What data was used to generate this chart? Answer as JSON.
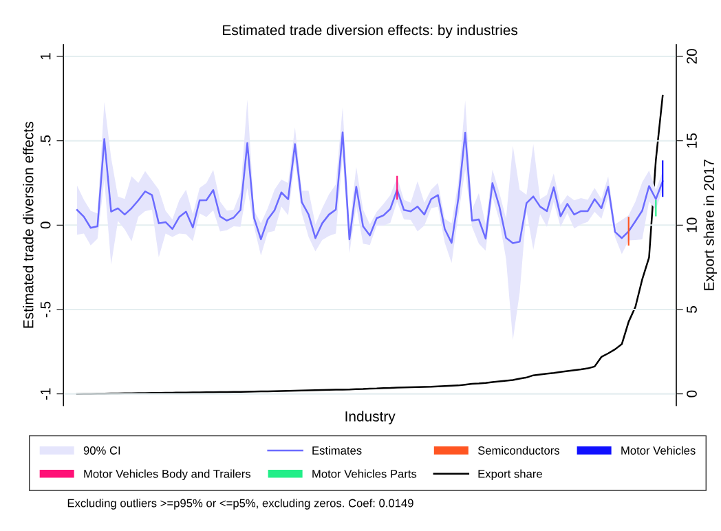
{
  "chart_data": {
    "type": "line",
    "title": "Estimated trade diversion effects: by industries",
    "xlabel": "Industry",
    "ylabel": "Estimated trade diversion effects",
    "y2label": "Export share in 2017",
    "categories": [
      null,
      null,
      null,
      null,
      null,
      null,
      null,
      null,
      null,
      null,
      null,
      null,
      null,
      null,
      null,
      null,
      null,
      null,
      null,
      null,
      null,
      null,
      null,
      null,
      null,
      null,
      null,
      null,
      null,
      null,
      null,
      null,
      null,
      null,
      null,
      null,
      null,
      null,
      null,
      null,
      null,
      null,
      null,
      null,
      null,
      null,
      null,
      null,
      null,
      null,
      null,
      null,
      null,
      null,
      null,
      null,
      null,
      null,
      null,
      null,
      null,
      null,
      null,
      null,
      null,
      null,
      null,
      null,
      null,
      null,
      null,
      null,
      null,
      null,
      null,
      null,
      null,
      null,
      null,
      null,
      null,
      null,
      null,
      null,
      null,
      null,
      null
    ],
    "ylim": [
      -1.07,
      1.07
    ],
    "yticks": [
      1,
      {
        "value": 0.5,
        "label": ".5"
      },
      0,
      {
        "value": -0.5,
        "label": "-.5"
      },
      {
        "value": -1,
        "label": "-1"
      }
    ],
    "y2lim": [
      -0.7,
      20.7
    ],
    "y2ticks": [
      0,
      5,
      10,
      15,
      20
    ],
    "grid": "y",
    "legend": "bottom",
    "series": [
      {
        "name": "90% CI",
        "type": "area",
        "color": "#e5e5fc",
        "values": [
          null,
          null,
          null,
          null,
          null,
          null,
          null,
          null,
          null,
          null,
          null,
          null,
          null,
          null,
          null,
          null,
          null,
          null,
          null,
          null,
          null,
          null,
          null,
          null,
          null,
          null,
          null,
          null,
          null,
          null,
          null,
          null,
          null,
          null,
          null,
          null,
          null,
          null,
          null,
          null,
          null,
          null,
          null,
          null,
          null,
          null,
          null,
          null,
          null,
          null,
          null,
          null,
          null,
          null,
          null,
          null,
          null,
          null,
          null,
          null,
          null,
          null,
          null,
          null,
          null,
          null,
          null,
          null,
          null,
          null,
          null,
          null,
          null,
          null,
          null,
          null,
          null,
          null,
          null,
          null,
          null,
          null,
          null,
          null,
          null,
          null,
          null
        ],
        "upper": [
          0.235,
          0.15,
          0.085,
          0.07,
          0.73,
          0.4,
          0.17,
          0.155,
          0.29,
          0.25,
          0.32,
          0.265,
          0.21,
          0.085,
          0.034,
          0.147,
          0.21,
          0.065,
          0.22,
          0.25,
          0.327,
          0.14,
          0.086,
          0.092,
          0.195,
          0.745,
          0.086,
          0.01,
          0.1,
          0.21,
          0.27,
          0.25,
          0.58,
          0.204,
          0.204,
          0.004,
          0.1,
          0.183,
          0.242,
          0.7,
          -0.01,
          0.346,
          0.092,
          0.004,
          0.079,
          0.126,
          0.178,
          0.283,
          0.15,
          0.133,
          0.26,
          0.133,
          0.21,
          0.25,
          0.038,
          0.01,
          0.26,
          0.74,
          0.092,
          0.19,
          0.004,
          0.33,
          0.194,
          0.04,
          0.47,
          0.21,
          0.18,
          0.48,
          0.154,
          0.18,
          0.306,
          0.12,
          0.178,
          0.147,
          0.16,
          0.15,
          0.22,
          0.154,
          0.29,
          0.004,
          0.031,
          0.058,
          0.14,
          0.255,
          0.323,
          0.21,
          0.317
        ],
        "lower": [
          -0.057,
          -0.05,
          -0.12,
          -0.08,
          0.27,
          -0.235,
          0.025,
          -0.025,
          -0.095,
          0.05,
          0.083,
          0.092,
          -0.19,
          -0.05,
          -0.07,
          -0.05,
          -0.054,
          -0.094,
          0.07,
          0.048,
          0.088,
          -0.037,
          -0.03,
          -0.007,
          -0.01,
          0.22,
          -0.01,
          -0.18,
          -0.043,
          -0.034,
          0.11,
          0.058,
          0.385,
          0.07,
          -0.07,
          -0.156,
          -0.088,
          -0.064,
          -0.05,
          0.405,
          -0.166,
          0.113,
          -0.11,
          -0.118,
          -0.003,
          -0.003,
          0.014,
          0.14,
          0.034,
          0.031,
          -0.037,
          -0.003,
          0.1,
          0.109,
          -0.105,
          -0.224,
          0.06,
          0.33,
          -0.01,
          -0.11,
          -0.152,
          0.167,
          0.031,
          -0.2,
          -0.68,
          -0.4,
          0.086,
          -0.145,
          0.065,
          -0.01,
          0.14,
          -0.01,
          0.072,
          -0.02,
          0.004,
          0.02,
          0.079,
          0.038,
          0.167,
          -0.07,
          -0.172,
          -0.09,
          -0.088,
          -0.084,
          0.14,
          0.092,
          0.21
        ]
      },
      {
        "name": "Estimates",
        "color": "#6b6bff",
        "values": [
          0.09,
          0.05,
          -0.016,
          -0.007,
          0.51,
          0.08,
          0.1,
          0.063,
          0.1,
          0.147,
          0.2,
          0.178,
          0.011,
          0.018,
          -0.023,
          0.048,
          0.08,
          -0.014,
          0.147,
          0.148,
          0.208,
          0.052,
          0.027,
          0.045,
          0.09,
          0.486,
          0.042,
          -0.084,
          0.034,
          0.088,
          0.194,
          0.154,
          0.48,
          0.136,
          0.063,
          -0.077,
          0.011,
          0.063,
          0.092,
          0.55,
          -0.084,
          0.228,
          -0.007,
          -0.061,
          0.041,
          0.058,
          0.096,
          0.21,
          0.09,
          0.082,
          0.11,
          0.063,
          0.154,
          0.178,
          -0.023,
          -0.105,
          0.16,
          0.548,
          0.027,
          0.034,
          -0.08,
          0.249,
          0.113,
          -0.075,
          -0.107,
          -0.098,
          0.13,
          0.17,
          0.11,
          0.083,
          0.224,
          0.052,
          0.126,
          0.063,
          0.083,
          0.083,
          0.154,
          0.1,
          0.228,
          -0.04,
          -0.077,
          -0.037,
          0.024,
          0.086,
          0.232,
          0.154,
          0.26
        ]
      },
      {
        "name": "Semiconductors",
        "type": "bar",
        "color": "#ff5522",
        "values": [
          null,
          null,
          null,
          null,
          null,
          null,
          null,
          null,
          null,
          null,
          null,
          null,
          null,
          null,
          null,
          null,
          null,
          null,
          null,
          null,
          null,
          null,
          null,
          null,
          null,
          null,
          null,
          null,
          null,
          null,
          null,
          null,
          null,
          null,
          null,
          null,
          null,
          null,
          null,
          null,
          null,
          null,
          null,
          null,
          null,
          null,
          null,
          null,
          null,
          null,
          null,
          null,
          null,
          null,
          null,
          null,
          null,
          null,
          null,
          null,
          null,
          null,
          null,
          null,
          null,
          null,
          null,
          null,
          null,
          null,
          null,
          null,
          null,
          null,
          null,
          null,
          null,
          null,
          null,
          null,
          null,
          0.17,
          null,
          null,
          null,
          null,
          null
        ],
        "base": [
          null,
          null,
          null,
          null,
          null,
          null,
          null,
          null,
          null,
          null,
          null,
          null,
          null,
          null,
          null,
          null,
          null,
          null,
          null,
          null,
          null,
          null,
          null,
          null,
          null,
          null,
          null,
          null,
          null,
          null,
          null,
          null,
          null,
          null,
          null,
          null,
          null,
          null,
          null,
          null,
          null,
          null,
          null,
          null,
          null,
          null,
          null,
          null,
          null,
          null,
          null,
          null,
          null,
          null,
          null,
          null,
          null,
          null,
          null,
          null,
          null,
          null,
          null,
          null,
          null,
          null,
          null,
          null,
          null,
          null,
          null,
          null,
          null,
          null,
          null,
          null,
          null,
          null,
          null,
          null,
          null,
          -0.121,
          null,
          null,
          null,
          null,
          null
        ]
      },
      {
        "name": "Motor Vehicles",
        "type": "bar",
        "color": "#1010ff",
        "values": [
          null,
          null,
          null,
          null,
          null,
          null,
          null,
          null,
          null,
          null,
          null,
          null,
          null,
          null,
          null,
          null,
          null,
          null,
          null,
          null,
          null,
          null,
          null,
          null,
          null,
          null,
          null,
          null,
          null,
          null,
          null,
          null,
          null,
          null,
          null,
          null,
          null,
          null,
          null,
          null,
          null,
          null,
          null,
          null,
          null,
          null,
          null,
          null,
          null,
          null,
          null,
          null,
          null,
          null,
          null,
          null,
          null,
          null,
          null,
          null,
          null,
          null,
          null,
          null,
          null,
          null,
          null,
          null,
          null,
          null,
          null,
          null,
          null,
          null,
          null,
          null,
          null,
          null,
          null,
          null,
          null,
          null,
          null,
          null,
          null,
          null,
          0.216
        ],
        "base": [
          null,
          null,
          null,
          null,
          null,
          null,
          null,
          null,
          null,
          null,
          null,
          null,
          null,
          null,
          null,
          null,
          null,
          null,
          null,
          null,
          null,
          null,
          null,
          null,
          null,
          null,
          null,
          null,
          null,
          null,
          null,
          null,
          null,
          null,
          null,
          null,
          null,
          null,
          null,
          null,
          null,
          null,
          null,
          null,
          null,
          null,
          null,
          null,
          null,
          null,
          null,
          null,
          null,
          null,
          null,
          null,
          null,
          null,
          null,
          null,
          null,
          null,
          null,
          null,
          null,
          null,
          null,
          null,
          null,
          null,
          null,
          null,
          null,
          null,
          null,
          null,
          null,
          null,
          null,
          null,
          null,
          null,
          null,
          null,
          null,
          null,
          0.167
        ]
      },
      {
        "name": "Motor Vehicles Body and Trailers",
        "type": "bar",
        "color": "#ff1177",
        "values": [
          null,
          null,
          null,
          null,
          null,
          null,
          null,
          null,
          null,
          null,
          null,
          null,
          null,
          null,
          null,
          null,
          null,
          null,
          null,
          null,
          null,
          null,
          null,
          null,
          null,
          null,
          null,
          null,
          null,
          null,
          null,
          null,
          null,
          null,
          null,
          null,
          null,
          null,
          null,
          null,
          null,
          null,
          null,
          null,
          null,
          null,
          null,
          0.141,
          null,
          null,
          null,
          null,
          null,
          null,
          null,
          null,
          null,
          null,
          null,
          null,
          null,
          null,
          null,
          null,
          null,
          null,
          null,
          null,
          null,
          null,
          null,
          null,
          null,
          null,
          null,
          null,
          null,
          null,
          null,
          null,
          null,
          null,
          null,
          null,
          null,
          null,
          null
        ],
        "base": [
          null,
          null,
          null,
          null,
          null,
          null,
          null,
          null,
          null,
          null,
          null,
          null,
          null,
          null,
          null,
          null,
          null,
          null,
          null,
          null,
          null,
          null,
          null,
          null,
          null,
          null,
          null,
          null,
          null,
          null,
          null,
          null,
          null,
          null,
          null,
          null,
          null,
          null,
          null,
          null,
          null,
          null,
          null,
          null,
          null,
          null,
          null,
          0.151,
          null,
          null,
          null,
          null,
          null,
          null,
          null,
          null,
          null,
          null,
          null,
          null,
          null,
          null,
          null,
          null,
          null,
          null,
          null,
          null,
          null,
          null,
          null,
          null,
          null,
          null,
          null,
          null,
          null,
          null,
          null,
          null,
          null,
          null,
          null,
          null,
          null,
          null,
          null
        ]
      },
      {
        "name": "Motor Vehicles Parts",
        "type": "bar",
        "color": "#22ee88",
        "values": [
          null,
          null,
          null,
          null,
          null,
          null,
          null,
          null,
          null,
          null,
          null,
          null,
          null,
          null,
          null,
          null,
          null,
          null,
          null,
          null,
          null,
          null,
          null,
          null,
          null,
          null,
          null,
          null,
          null,
          null,
          null,
          null,
          null,
          null,
          null,
          null,
          null,
          null,
          null,
          null,
          null,
          null,
          null,
          null,
          null,
          null,
          null,
          null,
          null,
          null,
          null,
          null,
          null,
          null,
          null,
          null,
          null,
          null,
          null,
          null,
          null,
          null,
          null,
          null,
          null,
          null,
          null,
          null,
          null,
          null,
          null,
          null,
          null,
          null,
          null,
          null,
          null,
          null,
          null,
          null,
          null,
          null,
          null,
          null,
          null,
          0.097,
          null
        ],
        "base": [
          null,
          null,
          null,
          null,
          null,
          null,
          null,
          null,
          null,
          null,
          null,
          null,
          null,
          null,
          null,
          null,
          null,
          null,
          null,
          null,
          null,
          null,
          null,
          null,
          null,
          null,
          null,
          null,
          null,
          null,
          null,
          null,
          null,
          null,
          null,
          null,
          null,
          null,
          null,
          null,
          null,
          null,
          null,
          null,
          null,
          null,
          null,
          null,
          null,
          null,
          null,
          null,
          null,
          null,
          null,
          null,
          null,
          null,
          null,
          null,
          null,
          null,
          null,
          null,
          null,
          null,
          null,
          null,
          null,
          null,
          null,
          null,
          null,
          null,
          null,
          null,
          null,
          null,
          null,
          null,
          null,
          null,
          null,
          null,
          null,
          0.052,
          null
        ]
      },
      {
        "name": "Export share",
        "type": "line",
        "axis": "y2",
        "color": "#000000",
        "values": [
          0,
          0.01,
          0.01,
          0.02,
          0.02,
          0.03,
          0.03,
          0.04,
          0.04,
          0.05,
          0.05,
          0.06,
          0.06,
          0.07,
          0.07,
          0.08,
          0.08,
          0.09,
          0.09,
          0.1,
          0.1,
          0.11,
          0.11,
          0.12,
          0.12,
          0.13,
          0.14,
          0.15,
          0.15,
          0.16,
          0.17,
          0.18,
          0.19,
          0.2,
          0.21,
          0.22,
          0.23,
          0.24,
          0.25,
          0.25,
          0.26,
          0.28,
          0.29,
          0.31,
          0.32,
          0.34,
          0.35,
          0.37,
          0.38,
          0.39,
          0.4,
          0.41,
          0.42,
          0.44,
          0.46,
          0.48,
          0.5,
          0.55,
          0.6,
          0.62,
          0.65,
          0.7,
          0.74,
          0.78,
          0.82,
          0.9,
          0.97,
          1.1,
          1.15,
          1.2,
          1.24,
          1.3,
          1.35,
          1.4,
          1.45,
          1.51,
          1.62,
          2.19,
          2.4,
          2.64,
          2.95,
          4.27,
          5.16,
          6.79,
          8.08,
          13.87,
          17.67
        ]
      }
    ],
    "annotations": [
      "Excluding outliers >=p95% or <=p5%, excluding zeros. Coef: 0.0149"
    ]
  }
}
